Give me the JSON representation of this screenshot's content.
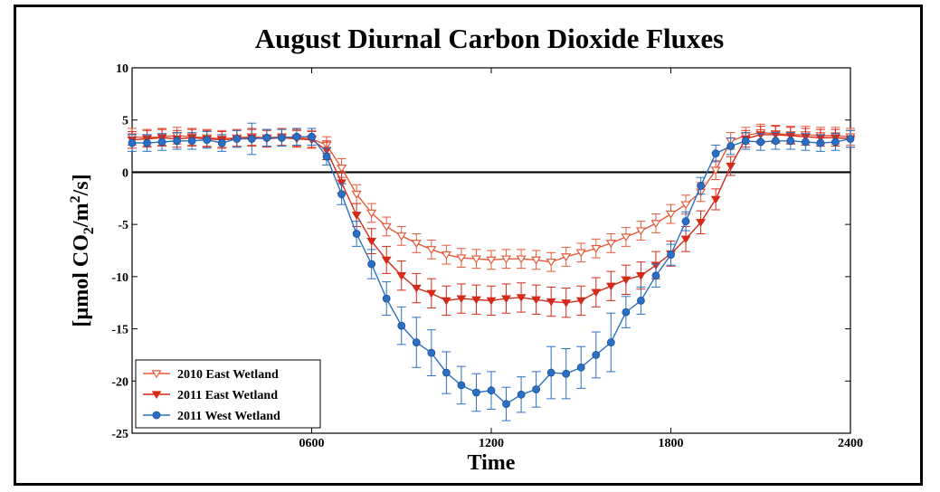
{
  "chart_data": {
    "type": "line",
    "title": "August Diurnal Carbon Dioxide Fluxes",
    "xlabel": "Time",
    "ylabel": "[µmol CO",
    "ylabel_sub": "2",
    "ylabel_mid": "/m",
    "ylabel_sup": "2",
    "ylabel_end": "/s]",
    "xlim": [
      0,
      2400
    ],
    "ylim": [
      -25,
      10
    ],
    "xticks": [
      600,
      1200,
      1800,
      2400
    ],
    "xtick_labels": [
      "0600",
      "1200",
      "1800",
      "2400"
    ],
    "yticks": [
      -25,
      -20,
      -15,
      -10,
      -5,
      0,
      5,
      10
    ],
    "ytick_labels": [
      "-25",
      "-20",
      "-15",
      "-10",
      "-5",
      "0",
      "5",
      "10"
    ],
    "reference_line_y": 0,
    "legend_position": "bottom-left",
    "x": [
      0,
      50,
      100,
      150,
      200,
      250,
      300,
      350,
      400,
      450,
      500,
      550,
      600,
      650,
      700,
      750,
      800,
      850,
      900,
      950,
      1000,
      1050,
      1100,
      1150,
      1200,
      1250,
      1300,
      1350,
      1400,
      1450,
      1500,
      1550,
      1600,
      1650,
      1700,
      1750,
      1800,
      1850,
      1900,
      1950,
      2000,
      2050,
      2100,
      2150,
      2200,
      2250,
      2300,
      2350,
      2400
    ],
    "series": [
      {
        "name": "2010 East Wetland",
        "color": "#e8593a",
        "marker": "triangle-down-open",
        "values": [
          3.4,
          3.3,
          3.4,
          3.5,
          3.4,
          3.3,
          3.2,
          3.3,
          3.4,
          3.3,
          3.4,
          3.3,
          3.2,
          2.6,
          0.4,
          -2.1,
          -3.9,
          -5.2,
          -6.1,
          -6.8,
          -7.4,
          -7.9,
          -8.2,
          -8.3,
          -8.4,
          -8.3,
          -8.3,
          -8.4,
          -8.6,
          -8.1,
          -7.7,
          -7.3,
          -6.8,
          -6.2,
          -5.6,
          -4.9,
          -4.0,
          -3.1,
          -1.9,
          0.2,
          3.0,
          3.5,
          3.8,
          3.7,
          3.6,
          3.6,
          3.5,
          3.5,
          3.4
        ],
        "errors": [
          0.8,
          0.8,
          0.8,
          0.8,
          0.8,
          0.8,
          0.8,
          0.8,
          0.8,
          0.8,
          0.8,
          0.8,
          0.8,
          0.8,
          0.9,
          0.9,
          0.9,
          0.9,
          0.9,
          0.9,
          0.9,
          0.9,
          0.9,
          0.9,
          0.9,
          0.9,
          0.9,
          0.9,
          0.9,
          0.9,
          0.9,
          0.9,
          0.9,
          0.9,
          0.9,
          0.9,
          0.9,
          0.9,
          0.9,
          0.9,
          0.8,
          0.8,
          0.8,
          0.8,
          0.8,
          0.8,
          0.8,
          0.8,
          0.8
        ]
      },
      {
        "name": "2011 East Wetland",
        "color": "#d42a1a",
        "marker": "triangle-down-filled",
        "values": [
          3.1,
          3.2,
          3.3,
          3.2,
          3.3,
          3.2,
          3.1,
          3.2,
          3.3,
          3.2,
          3.3,
          3.2,
          3.1,
          2.1,
          -1.0,
          -4.1,
          -6.6,
          -8.4,
          -9.9,
          -11.1,
          -11.6,
          -12.3,
          -12.1,
          -12.2,
          -12.3,
          -12.1,
          -12.0,
          -12.2,
          -12.4,
          -12.5,
          -12.3,
          -11.5,
          -10.9,
          -10.3,
          -9.9,
          -8.9,
          -7.8,
          -6.4,
          -4.8,
          -2.6,
          0.6,
          3.2,
          3.6,
          3.6,
          3.5,
          3.4,
          3.3,
          3.3,
          3.2
        ],
        "errors": [
          0.8,
          0.8,
          0.8,
          0.8,
          0.8,
          0.8,
          0.8,
          0.8,
          0.8,
          0.8,
          0.8,
          0.8,
          0.8,
          0.9,
          1.0,
          1.1,
          1.2,
          1.3,
          1.4,
          1.4,
          1.4,
          1.4,
          1.4,
          1.4,
          1.4,
          1.4,
          1.4,
          1.4,
          1.4,
          1.4,
          1.4,
          1.4,
          1.4,
          1.4,
          1.3,
          1.3,
          1.2,
          1.2,
          1.1,
          1.0,
          0.9,
          0.8,
          0.8,
          0.8,
          0.8,
          0.8,
          0.8,
          0.8,
          0.8
        ]
      },
      {
        "name": "2011 West Wetland",
        "color": "#2b6fc4",
        "marker": "circle-filled",
        "values": [
          2.8,
          2.8,
          2.9,
          3.0,
          3.0,
          3.1,
          2.8,
          3.2,
          3.2,
          3.3,
          3.3,
          3.4,
          3.4,
          1.5,
          -2.1,
          -5.9,
          -8.8,
          -12.1,
          -14.7,
          -16.3,
          -17.3,
          -19.2,
          -20.4,
          -21.1,
          -20.9,
          -22.2,
          -21.3,
          -20.8,
          -19.2,
          -19.3,
          -18.7,
          -17.5,
          -16.3,
          -13.4,
          -12.3,
          -9.9,
          -7.9,
          -4.7,
          -1.3,
          1.8,
          2.5,
          3.0,
          2.9,
          3.0,
          3.0,
          2.9,
          2.8,
          2.9,
          3.2
        ],
        "errors": [
          0.8,
          0.8,
          0.8,
          0.8,
          0.8,
          0.8,
          0.8,
          0.8,
          1.5,
          0.8,
          0.8,
          0.8,
          0.8,
          0.8,
          1.0,
          1.2,
          1.4,
          1.6,
          1.8,
          2.4,
          2.2,
          2.0,
          1.8,
          1.8,
          1.8,
          1.6,
          1.7,
          1.7,
          2.5,
          2.4,
          2.0,
          2.2,
          2.8,
          1.5,
          1.3,
          1.1,
          1.0,
          0.9,
          0.8,
          0.8,
          0.8,
          0.8,
          0.8,
          0.8,
          0.8,
          0.8,
          0.8,
          0.8,
          0.8
        ]
      }
    ]
  }
}
